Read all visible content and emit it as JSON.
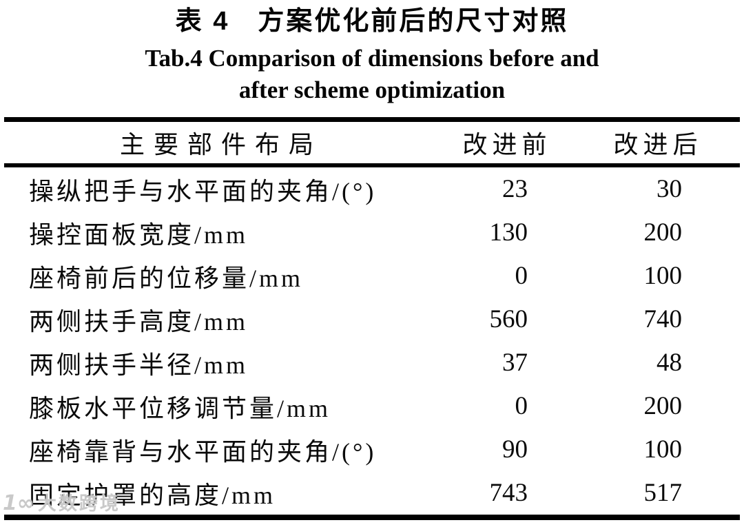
{
  "page": {
    "title_cn": "表 4　方案优化前后的尺寸对照",
    "title_en_line1": "Tab.4 Comparison of dimensions before and",
    "title_en_line2": "after scheme optimization"
  },
  "table": {
    "columns": [
      "主要部件布局",
      "改进前",
      "改进后"
    ],
    "rows": [
      {
        "label": "操纵把手与水平面的夹角/(°)",
        "before": "23",
        "after": "30"
      },
      {
        "label": "操控面板宽度/mm",
        "before": "130",
        "after": "200"
      },
      {
        "label": "座椅前后的位移量/mm",
        "before": "0",
        "after": "100"
      },
      {
        "label": "两侧扶手高度/mm",
        "before": "560",
        "after": "740"
      },
      {
        "label": "两侧扶手半径/mm",
        "before": "37",
        "after": "48"
      },
      {
        "label": "膝板水平位移调节量/mm",
        "before": "0",
        "after": "200"
      },
      {
        "label": "座椅靠背与水平面的夹角/(°)",
        "before": "90",
        "after": "100"
      },
      {
        "label": "固定护罩的高度/mm",
        "before": "743",
        "after": "517"
      }
    ]
  },
  "chart_data": {
    "type": "table",
    "title": "表 4 方案优化前后的尺寸对照 / Tab.4 Comparison of dimensions before and after scheme optimization",
    "columns": [
      "主要部件布局",
      "改进前",
      "改进后"
    ],
    "categories": [
      "操纵把手与水平面的夹角/(°)",
      "操控面板宽度/mm",
      "座椅前后的位移量/mm",
      "两侧扶手高度/mm",
      "两侧扶手半径/mm",
      "膝板水平位移调节量/mm",
      "座椅靠背与水平面的夹角/(°)",
      "固定护罩的高度/mm"
    ],
    "series": [
      {
        "name": "改进前",
        "values": [
          23,
          130,
          0,
          560,
          37,
          0,
          90,
          743
        ]
      },
      {
        "name": "改进后",
        "values": [
          30,
          200,
          100,
          740,
          48,
          200,
          100,
          517
        ]
      }
    ]
  },
  "watermark": {
    "logo": "1∞",
    "text": "大数跨境"
  }
}
